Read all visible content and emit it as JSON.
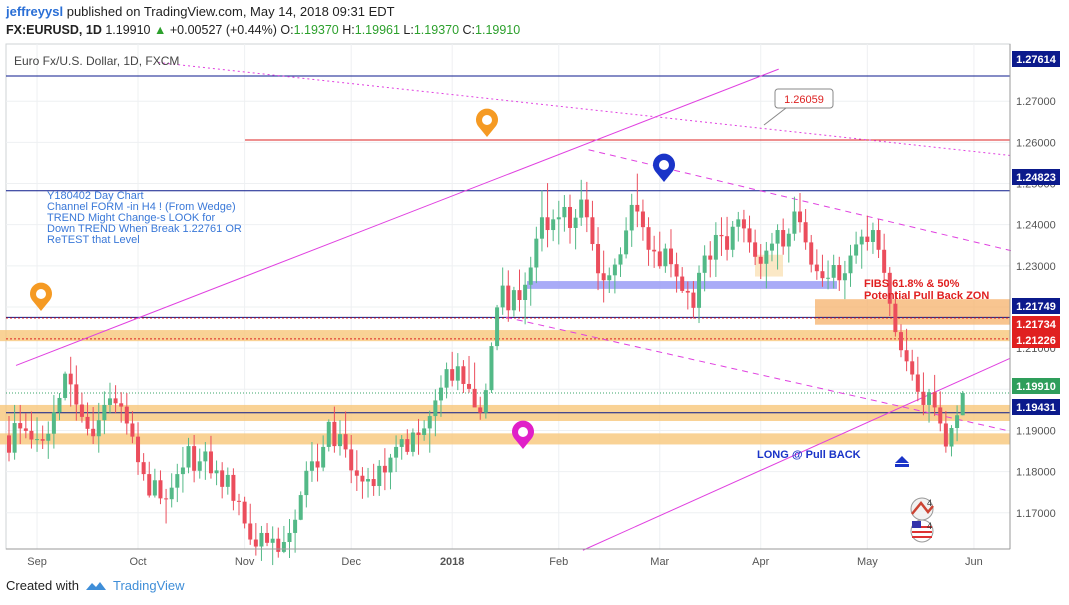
{
  "header": {
    "user": "jeffreyysl",
    "published": "published on TradingView.com, May 14, 2018 09:31 EDT",
    "symbol": "FX:EURUSD, 1D",
    "last": "1.19910",
    "change": "+0.00527 (+0.44%)",
    "o_label": "O:",
    "o_value": "1.19370",
    "h_label": "H:",
    "h_value": "1.19961",
    "l_label": "L:",
    "l_value": "1.19370",
    "c_label": "C:",
    "c_value": "1.19910"
  },
  "footer": {
    "created_with": "Created with",
    "brand": "TradingView"
  },
  "colors": {
    "up": "#53b987",
    "down": "#eb4d5c",
    "magenta": "#e040e0",
    "navy": "#0b1a8c",
    "red_line": "#d22",
    "zone": "#f7c77b",
    "blue_zone": "#9a9cf6"
  },
  "chart_data": {
    "type": "candlestick",
    "title": "Euro Fx/U.S. Dollar, 1D, FXCM",
    "x_ticks": [
      "Sep",
      "Oct",
      "Nov",
      "Dec",
      "2018",
      "Feb",
      "Mar",
      "Apr",
      "May",
      "Jun"
    ],
    "y_ticks": [
      "1.27000",
      "1.26000",
      "1.25000",
      "1.24000",
      "1.23000",
      "1.22000",
      "1.21000",
      "1.20000",
      "1.19000",
      "1.18000",
      "1.17000"
    ],
    "ylim": [
      1.1612,
      1.2839
    ],
    "price_labels": [
      {
        "value": 1.27614,
        "text": "1.27614",
        "color": "#0b1a8c"
      },
      {
        "value": 1.24823,
        "text": "1.24823",
        "color": "#0b1a8c"
      },
      {
        "value": 1.21749,
        "text": "1.21749",
        "color": "#0b1a8c"
      },
      {
        "value": 1.21734,
        "text": "1.21734",
        "color": "#e02020"
      },
      {
        "value": 1.21226,
        "text": "1.21226",
        "color": "#e02020"
      },
      {
        "value": 1.1991,
        "text": "1.19910",
        "color": "#2e9e5b"
      },
      {
        "value": 1.19431,
        "text": "1.19431",
        "color": "#0b1a8c"
      }
    ],
    "annotations": {
      "note_lines": [
        "Y180402 Day Chart",
        "Channel FORM -in H4 ! (From Wedge)",
        "TREND Might Change-s LOOK for",
        "Down TREND When Break 1.22761 OR",
        "ReTEST that Level"
      ],
      "fibs_line1": "FIBS 61.8% & 50%",
      "fibs_line2": "Potential Pull Back ZON",
      "callout": "1.26059",
      "long_label": "LONG @ Pull BACK"
    },
    "candles_ohlc": [
      [
        1.1888,
        1.1935,
        1.1825,
        1.1846
      ],
      [
        1.1846,
        1.1962,
        1.1829,
        1.1918
      ],
      [
        1.1918,
        1.1962,
        1.1867,
        1.1905
      ],
      [
        1.1905,
        1.1942,
        1.1881,
        1.1899
      ],
      [
        1.1899,
        1.1946,
        1.1856,
        1.1878
      ],
      [
        1.1878,
        1.1932,
        1.1848,
        1.1879
      ],
      [
        1.1879,
        1.1912,
        1.1855,
        1.1875
      ],
      [
        1.1875,
        1.1922,
        1.1831,
        1.1892
      ],
      [
        1.1892,
        1.1986,
        1.1856,
        1.1944
      ],
      [
        1.1944,
        1.1991,
        1.1925,
        1.1979
      ],
      [
        1.1979,
        1.2043,
        1.1973,
        1.2038
      ],
      [
        1.2038,
        1.2079,
        1.1958,
        1.2012
      ],
      [
        1.2012,
        1.2058,
        1.1924,
        1.1963
      ],
      [
        1.1963,
        1.1992,
        1.1919,
        1.1933
      ],
      [
        1.1933,
        1.1968,
        1.1888,
        1.1904
      ],
      [
        1.1904,
        1.1957,
        1.1867,
        1.1886
      ],
      [
        1.1886,
        1.1967,
        1.1846,
        1.1925
      ],
      [
        1.1925,
        1.1995,
        1.1891,
        1.1962
      ],
      [
        1.1962,
        1.2016,
        1.1941,
        1.1978
      ],
      [
        1.1978,
        1.201,
        1.1942,
        1.1966
      ],
      [
        1.1966,
        1.1993,
        1.1919,
        1.1958
      ],
      [
        1.1958,
        1.1991,
        1.189,
        1.1917
      ],
      [
        1.1917,
        1.1947,
        1.1869,
        1.1885
      ],
      [
        1.1885,
        1.192,
        1.1792,
        1.1823
      ],
      [
        1.1823,
        1.1845,
        1.1778,
        1.1794
      ],
      [
        1.1794,
        1.1824,
        1.1737,
        1.1742
      ],
      [
        1.1742,
        1.1807,
        1.1737,
        1.1779
      ],
      [
        1.1779,
        1.1803,
        1.1721,
        1.1735
      ],
      [
        1.1735,
        1.1758,
        1.1674,
        1.1733
      ],
      [
        1.1733,
        1.1796,
        1.1713,
        1.1761
      ],
      [
        1.1761,
        1.1819,
        1.1726,
        1.1794
      ],
      [
        1.1794,
        1.186,
        1.1749,
        1.181
      ],
      [
        1.181,
        1.1882,
        1.1796,
        1.1862
      ],
      [
        1.1862,
        1.1889,
        1.1774,
        1.1802
      ],
      [
        1.1802,
        1.1856,
        1.1783,
        1.1825
      ],
      [
        1.1825,
        1.1872,
        1.178,
        1.1849
      ],
      [
        1.1849,
        1.1887,
        1.1783,
        1.1796
      ],
      [
        1.1796,
        1.1827,
        1.1767,
        1.1803
      ],
      [
        1.1803,
        1.1823,
        1.1735,
        1.1763
      ],
      [
        1.1763,
        1.181,
        1.1744,
        1.1792
      ],
      [
        1.1792,
        1.1808,
        1.1706,
        1.1729
      ],
      [
        1.1729,
        1.1746,
        1.1694,
        1.1727
      ],
      [
        1.1727,
        1.1739,
        1.1662,
        1.1674
      ],
      [
        1.1674,
        1.1722,
        1.1622,
        1.1635
      ],
      [
        1.1635,
        1.1675,
        1.1596,
        1.1618
      ],
      [
        1.1618,
        1.1668,
        1.1583,
        1.1651
      ],
      [
        1.1651,
        1.1675,
        1.1619,
        1.1627
      ],
      [
        1.1627,
        1.1667,
        1.1573,
        1.1637
      ],
      [
        1.1637,
        1.1664,
        1.1591,
        1.1605
      ],
      [
        1.1605,
        1.1668,
        1.1602,
        1.1629
      ],
      [
        1.1629,
        1.1685,
        1.159,
        1.1651
      ],
      [
        1.1651,
        1.1708,
        1.1603,
        1.1683
      ],
      [
        1.1683,
        1.1752,
        1.1682,
        1.1743
      ],
      [
        1.1743,
        1.1825,
        1.1713,
        1.1802
      ],
      [
        1.1802,
        1.1872,
        1.1775,
        1.1825
      ],
      [
        1.1825,
        1.1868,
        1.1776,
        1.181
      ],
      [
        1.181,
        1.1888,
        1.1801,
        1.186
      ],
      [
        1.186,
        1.1927,
        1.1849,
        1.1921
      ],
      [
        1.1921,
        1.1958,
        1.1846,
        1.1862
      ],
      [
        1.1862,
        1.1925,
        1.1839,
        1.1891
      ],
      [
        1.1891,
        1.1946,
        1.1834,
        1.1854
      ],
      [
        1.1854,
        1.1889,
        1.1772,
        1.1803
      ],
      [
        1.1803,
        1.1852,
        1.1753,
        1.179
      ],
      [
        1.179,
        1.1811,
        1.1734,
        1.1776
      ],
      [
        1.1776,
        1.1809,
        1.1737,
        1.1782
      ],
      [
        1.1782,
        1.1819,
        1.1741,
        1.1765
      ],
      [
        1.1765,
        1.1828,
        1.1741,
        1.1814
      ],
      [
        1.1814,
        1.1857,
        1.1755,
        1.1798
      ],
      [
        1.1798,
        1.1843,
        1.1757,
        1.1834
      ],
      [
        1.1834,
        1.1888,
        1.1799,
        1.186
      ],
      [
        1.186,
        1.1889,
        1.1829,
        1.1879
      ],
      [
        1.1879,
        1.1903,
        1.1841,
        1.1848
      ],
      [
        1.1848,
        1.1905,
        1.1837,
        1.1895
      ],
      [
        1.1895,
        1.1928,
        1.1841,
        1.1889
      ],
      [
        1.1889,
        1.1925,
        1.1875,
        1.1905
      ],
      [
        1.1905,
        1.1948,
        1.1846,
        1.1935
      ],
      [
        1.1935,
        1.2,
        1.1886,
        1.1973
      ],
      [
        1.1973,
        1.2034,
        1.1933,
        1.2004
      ],
      [
        1.2004,
        1.2065,
        1.1978,
        1.2049
      ],
      [
        1.2049,
        1.2091,
        1.2007,
        1.2021
      ],
      [
        1.2021,
        1.2088,
        1.1998,
        1.2056
      ],
      [
        1.2056,
        1.2071,
        1.1991,
        1.2013
      ],
      [
        1.2013,
        1.2081,
        1.1992,
        1.2001
      ],
      [
        1.2001,
        1.2065,
        1.1977,
        1.1956
      ],
      [
        1.1956,
        1.1982,
        1.1926,
        1.1943
      ],
      [
        1.1943,
        1.2014,
        1.1929,
        1.1998
      ],
      [
        1.1998,
        1.2114,
        1.1991,
        1.2105
      ],
      [
        1.2105,
        1.2205,
        1.2095,
        1.2199
      ],
      [
        1.2199,
        1.2296,
        1.2181,
        1.2252
      ],
      [
        1.2252,
        1.2289,
        1.2164,
        1.2192
      ],
      [
        1.2192,
        1.2249,
        1.2177,
        1.2241
      ],
      [
        1.2241,
        1.2291,
        1.2189,
        1.2217
      ],
      [
        1.2217,
        1.2284,
        1.2158,
        1.2254
      ],
      [
        1.2254,
        1.2322,
        1.2203,
        1.2296
      ],
      [
        1.2296,
        1.2395,
        1.2258,
        1.2366
      ],
      [
        1.2366,
        1.2483,
        1.2335,
        1.2418
      ],
      [
        1.2418,
        1.2501,
        1.2345,
        1.2387
      ],
      [
        1.2387,
        1.2437,
        1.236,
        1.2413
      ],
      [
        1.2413,
        1.2458,
        1.2352,
        1.2418
      ],
      [
        1.2418,
        1.2472,
        1.2383,
        1.2443
      ],
      [
        1.2443,
        1.2473,
        1.2354,
        1.2392
      ],
      [
        1.2392,
        1.2438,
        1.234,
        1.2417
      ],
      [
        1.2417,
        1.2509,
        1.2397,
        1.2461
      ],
      [
        1.2461,
        1.2504,
        1.2382,
        1.2418
      ],
      [
        1.2418,
        1.2458,
        1.2337,
        1.2353
      ],
      [
        1.2353,
        1.2394,
        1.2241,
        1.2282
      ],
      [
        1.2282,
        1.2337,
        1.2211,
        1.2265
      ],
      [
        1.2265,
        1.2296,
        1.2234,
        1.2277
      ],
      [
        1.2277,
        1.2318,
        1.2233,
        1.2303
      ],
      [
        1.2303,
        1.2345,
        1.2273,
        1.2328
      ],
      [
        1.2328,
        1.2418,
        1.2318,
        1.2386
      ],
      [
        1.2386,
        1.2475,
        1.2346,
        1.2448
      ],
      [
        1.2448,
        1.2524,
        1.2394,
        1.2432
      ],
      [
        1.2432,
        1.2461,
        1.2361,
        1.2394
      ],
      [
        1.2394,
        1.2418,
        1.23,
        1.2339
      ],
      [
        1.2339,
        1.2373,
        1.2295,
        1.2335
      ],
      [
        1.2335,
        1.2383,
        1.2293,
        1.2299
      ],
      [
        1.2299,
        1.2354,
        1.2283,
        1.2342
      ],
      [
        1.2342,
        1.2389,
        1.2272,
        1.2304
      ],
      [
        1.2304,
        1.2332,
        1.2235,
        1.2274
      ],
      [
        1.2274,
        1.2297,
        1.2234,
        1.2239
      ],
      [
        1.2239,
        1.2262,
        1.2194,
        1.2235
      ],
      [
        1.2235,
        1.2263,
        1.2172,
        1.2198
      ],
      [
        1.2198,
        1.2301,
        1.2161,
        1.2283
      ],
      [
        1.2283,
        1.235,
        1.2238,
        1.2325
      ],
      [
        1.2325,
        1.236,
        1.2272,
        1.2315
      ],
      [
        1.2315,
        1.2406,
        1.2273,
        1.2375
      ],
      [
        1.2375,
        1.2418,
        1.2324,
        1.2372
      ],
      [
        1.2372,
        1.2419,
        1.2313,
        1.2339
      ],
      [
        1.2339,
        1.2409,
        1.2321,
        1.2395
      ],
      [
        1.2395,
        1.2431,
        1.2359,
        1.2413
      ],
      [
        1.2413,
        1.2436,
        1.2357,
        1.2391
      ],
      [
        1.2391,
        1.2422,
        1.2332,
        1.2357
      ],
      [
        1.2357,
        1.2388,
        1.2302,
        1.2322
      ],
      [
        1.2322,
        1.2353,
        1.2268,
        1.2305
      ],
      [
        1.2305,
        1.2358,
        1.2245,
        1.2337
      ],
      [
        1.2337,
        1.238,
        1.2311,
        1.2354
      ],
      [
        1.2354,
        1.2401,
        1.2291,
        1.2387
      ],
      [
        1.2387,
        1.2415,
        1.2327,
        1.2347
      ],
      [
        1.2347,
        1.2391,
        1.2308,
        1.2378
      ],
      [
        1.2378,
        1.2468,
        1.2361,
        1.2432
      ],
      [
        1.2432,
        1.2477,
        1.2381,
        1.2406
      ],
      [
        1.2406,
        1.2438,
        1.2339,
        1.2357
      ],
      [
        1.2357,
        1.2375,
        1.2284,
        1.2303
      ],
      [
        1.2303,
        1.234,
        1.2266,
        1.2287
      ],
      [
        1.2287,
        1.2327,
        1.2249,
        1.227
      ],
      [
        1.227,
        1.2313,
        1.2243,
        1.2271
      ],
      [
        1.2271,
        1.2327,
        1.2245,
        1.2302
      ],
      [
        1.2302,
        1.2322,
        1.2239,
        1.2265
      ],
      [
        1.2265,
        1.2312,
        1.2219,
        1.2282
      ],
      [
        1.2282,
        1.2351,
        1.2249,
        1.2325
      ],
      [
        1.2325,
        1.2383,
        1.2305,
        1.2352
      ],
      [
        1.2352,
        1.2388,
        1.2293,
        1.2371
      ],
      [
        1.2371,
        1.2422,
        1.2337,
        1.2358
      ],
      [
        1.2358,
        1.2405,
        1.2329,
        1.2387
      ],
      [
        1.2387,
        1.2413,
        1.2319,
        1.2339
      ],
      [
        1.2339,
        1.2378,
        1.2264,
        1.2283
      ],
      [
        1.2283,
        1.2297,
        1.2178,
        1.2208
      ],
      [
        1.2208,
        1.2238,
        1.2128,
        1.2139
      ],
      [
        1.2139,
        1.2158,
        1.2078,
        1.2095
      ],
      [
        1.2095,
        1.2147,
        1.2044,
        1.2068
      ],
      [
        1.2068,
        1.2096,
        1.2021,
        1.2036
      ],
      [
        1.2036,
        1.2079,
        1.1971,
        1.1994
      ],
      [
        1.1994,
        1.2041,
        1.1937,
        1.1962
      ],
      [
        1.1962,
        1.2001,
        1.1919,
        1.1993
      ],
      [
        1.1993,
        1.2035,
        1.1935,
        1.1956
      ],
      [
        1.1956,
        1.1995,
        1.1898,
        1.1917
      ],
      [
        1.1917,
        1.1947,
        1.1846,
        1.1861
      ],
      [
        1.1861,
        1.1913,
        1.1837,
        1.1906
      ],
      [
        1.1906,
        1.1961,
        1.1874,
        1.1937
      ],
      [
        1.1937,
        1.1996,
        1.1937,
        1.1991
      ]
    ]
  }
}
